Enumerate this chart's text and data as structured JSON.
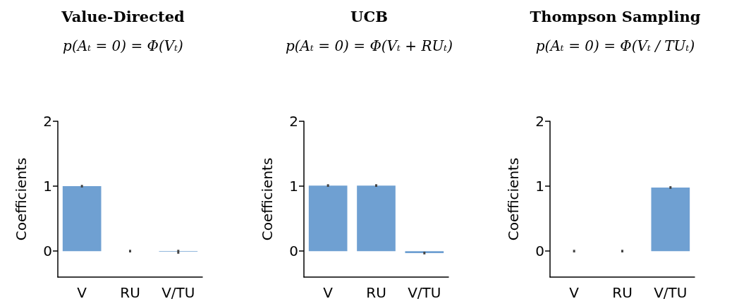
{
  "chart_data": [
    {
      "type": "bar",
      "title": "Value-Directed",
      "subtitle": "p(Aₜ = 0) = Φ(Vₜ)",
      "ylabel": "Coefficients",
      "categories": [
        "V",
        "RU",
        "V/TU"
      ],
      "values": [
        1.0,
        0.0,
        -0.01
      ],
      "errors": [
        0.02,
        0.02,
        0.03
      ],
      "color": "#6fa0d2",
      "ylim": [
        -0.4,
        2
      ],
      "yticks": [
        0,
        1,
        2
      ],
      "grid": false
    },
    {
      "type": "bar",
      "title": "UCB",
      "subtitle": "p(Aₜ = 0) = Φ(Vₜ + RUₜ)",
      "ylabel": "Coefficients",
      "categories": [
        "V",
        "RU",
        "V/TU"
      ],
      "values": [
        1.01,
        1.01,
        -0.03
      ],
      "errors": [
        0.02,
        0.02,
        0.02
      ],
      "color": "#6fa0d2",
      "ylim": [
        -0.4,
        2
      ],
      "yticks": [
        0,
        1,
        2
      ],
      "grid": false
    },
    {
      "type": "bar",
      "title": "Thompson Sampling",
      "subtitle": "p(Aₜ = 0) = Φ(Vₜ / TUₜ)",
      "ylabel": "Coefficients",
      "categories": [
        "V",
        "RU",
        "V/TU"
      ],
      "values": [
        0.0,
        0.0,
        0.98
      ],
      "errors": [
        0.02,
        0.02,
        0.02
      ],
      "color": "#6fa0d2",
      "ylim": [
        -0.4,
        2
      ],
      "yticks": [
        0,
        1,
        2
      ],
      "grid": false
    }
  ]
}
